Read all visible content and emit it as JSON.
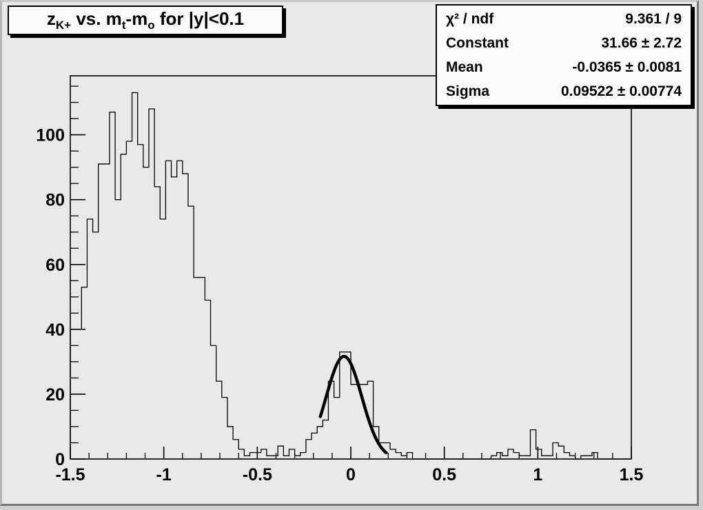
{
  "title": {
    "t1": "z",
    "s1": "K+",
    "t2": " vs. m",
    "s2": "t",
    "t3": "-m",
    "s3": "o",
    "t4": " for |y|<0.1",
    "full": "z_K+ vs. m_t-m_o for |y|<0.1"
  },
  "stats": {
    "rows": [
      {
        "label": "χ² / ndf",
        "value": "9.361 / 9"
      },
      {
        "label": "Constant",
        "value": "31.66 ± 2.72"
      },
      {
        "label": "Mean",
        "value": "-0.0365 ± 0.0081"
      },
      {
        "label": "Sigma",
        "value": "0.09522 ± 0.00774"
      }
    ]
  },
  "colors": {
    "canvas_bg": "#e9e9e9",
    "box_bg": "#fbfbfb",
    "line": "#000000",
    "fit": "#000000"
  },
  "chart_data": {
    "type": "bar",
    "subtype": "root-histogram-with-gaussian-fit",
    "title": "z_K+ vs. m_t-m_o for |y|<0.1",
    "xlabel": "",
    "ylabel": "",
    "x_min": -1.5,
    "x_max": 1.5,
    "n_bins": 100,
    "bin_width": 0.03,
    "bin_contents": [
      40,
      40,
      53,
      74,
      70,
      91,
      91,
      107,
      80,
      94,
      98,
      113,
      97,
      90,
      108,
      84,
      74,
      92,
      87,
      92,
      88,
      78,
      56,
      56,
      49,
      35,
      24,
      19,
      10,
      6,
      3,
      1,
      2,
      2,
      3,
      1,
      1,
      4,
      1,
      3,
      1,
      2,
      6,
      8,
      10,
      12,
      24,
      19,
      33,
      33,
      23,
      23,
      23,
      24,
      10,
      5,
      5,
      3,
      2,
      1,
      2,
      0,
      0,
      0,
      0,
      0,
      0,
      0,
      0,
      0,
      0,
      0,
      0,
      0,
      0,
      1,
      2,
      1,
      3,
      2,
      1,
      1,
      9,
      3,
      1,
      1,
      5,
      4,
      2,
      1,
      0,
      1,
      1,
      2,
      0,
      0,
      0,
      0,
      0,
      0
    ],
    "ylim": [
      0,
      118.2
    ],
    "x_tick_labels": [
      "-1.5",
      "-1",
      "-0.5",
      "0",
      "0.5",
      "1",
      "1.5"
    ],
    "x_ticks_major": [
      -1.5,
      -1,
      -0.5,
      0,
      0.5,
      1,
      1.5
    ],
    "x_minor_step": 0.1,
    "y_tick_labels": [
      "0",
      "20",
      "40",
      "60",
      "80",
      "100"
    ],
    "y_ticks_major": [
      0,
      20,
      40,
      60,
      80,
      100
    ],
    "y_minor_step": 5,
    "grid": false,
    "legend": "none",
    "fit": {
      "type": "gaussian",
      "constant": 31.66,
      "mean": -0.0365,
      "sigma": 0.09522,
      "draw_range": [
        -0.163,
        0.19
      ]
    }
  }
}
